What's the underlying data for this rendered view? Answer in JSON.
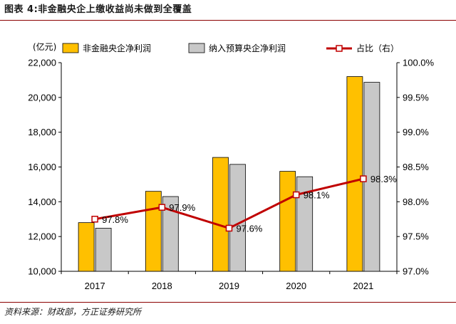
{
  "title": "图表 4:非金融央企上缴收益尚未做到全覆盖",
  "source": "资料来源：财政部，方正证券研究所",
  "chart_data": {
    "type": "bar",
    "y_unit": "(亿元)",
    "categories": [
      "2017",
      "2018",
      "2019",
      "2020",
      "2021"
    ],
    "series": [
      {
        "name": "非金融央企净利润",
        "type": "bar",
        "axis": "left",
        "color": "#FFC000",
        "values": [
          12800,
          14600,
          16550,
          15750,
          21200
        ]
      },
      {
        "name": "纳入预算央企净利润",
        "type": "bar",
        "axis": "left",
        "color": "#C8C8C8",
        "values": [
          12480,
          14300,
          16150,
          15440,
          20870
        ]
      },
      {
        "name": "占比（右）",
        "type": "line",
        "axis": "right",
        "color": "#C00000",
        "values": [
          97.75,
          97.92,
          97.62,
          98.1,
          98.33
        ],
        "labels": [
          "97.8%",
          "97.9%",
          "97.6%",
          "98.1%",
          "98.3%"
        ]
      }
    ],
    "ylim_left": [
      10000,
      22000
    ],
    "left_ticks": [
      "10,000",
      "12,000",
      "14,000",
      "16,000",
      "18,000",
      "20,000",
      "22,000"
    ],
    "ylim_right": [
      97.0,
      100.0
    ],
    "right_ticks": [
      "97.0%",
      "97.5%",
      "98.0%",
      "98.5%",
      "99.0%",
      "99.5%",
      "100.0%"
    ],
    "grid": false,
    "legend_position": "top"
  }
}
